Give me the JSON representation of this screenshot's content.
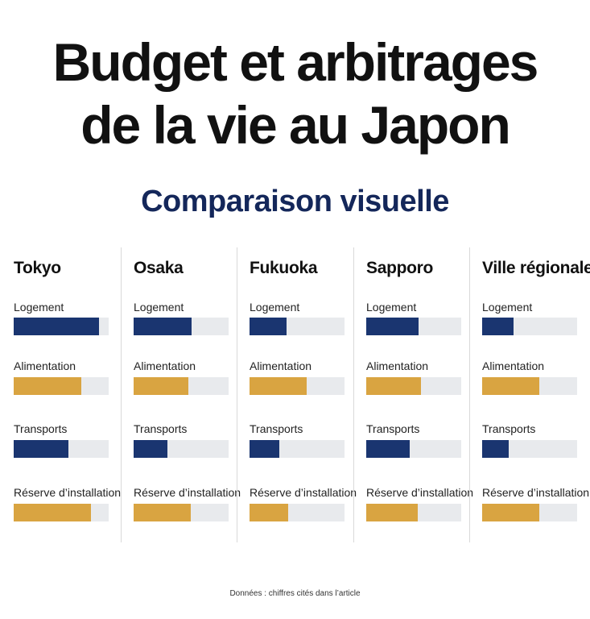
{
  "header": {
    "title_line1": "Budget et arbitrages",
    "title_line2": "de la vie au Japon",
    "subtitle": "Comparaison visuelle"
  },
  "colors": {
    "navy": "#1a3570",
    "gold": "#d9a441",
    "track": "#e8eaed",
    "subtitle": "#14275a"
  },
  "chart_data": {
    "type": "bar",
    "orientation": "horizontal",
    "categories": [
      "Tokyo",
      "Osaka",
      "Fukuoka",
      "Sapporo",
      "Ville régionale"
    ],
    "metrics": [
      "Logement",
      "Alimentation",
      "Transports",
      "Réserve d’installation"
    ],
    "metric_colors": [
      "navy",
      "gold",
      "navy",
      "gold"
    ],
    "xlim": [
      0,
      1
    ],
    "series": [
      {
        "name": "Logement",
        "values": [
          0.9,
          0.61,
          0.39,
          0.55,
          0.33
        ]
      },
      {
        "name": "Alimentation",
        "values": [
          0.71,
          0.58,
          0.6,
          0.58,
          0.6
        ]
      },
      {
        "name": "Transports",
        "values": [
          0.58,
          0.36,
          0.31,
          0.46,
          0.28
        ]
      },
      {
        "name": "Réserve d’installation",
        "values": [
          0.81,
          0.6,
          0.41,
          0.54,
          0.6
        ]
      }
    ],
    "grid": false,
    "legend": "none"
  },
  "source_note": "Données : chiffres cités dans l’article"
}
